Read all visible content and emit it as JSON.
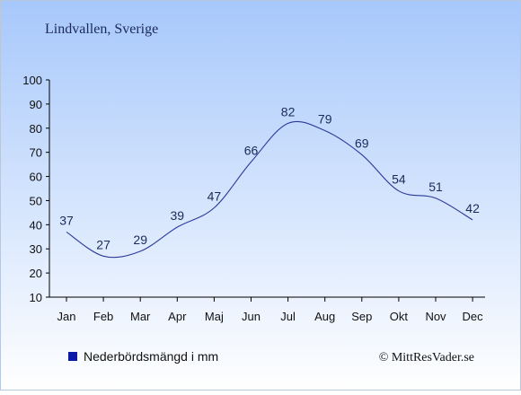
{
  "header": {
    "location": "Lindvallen, Sverige"
  },
  "legend": {
    "label": "Nederbördsmängd i mm",
    "swatch_color": "#0a1aa6"
  },
  "credit": {
    "text": "© MittResVader.se"
  },
  "colors": {
    "background_top": "#a7c8fb",
    "background_bottom": "#ffffff",
    "line": "#2a3a9a",
    "text": "#1a2a5a",
    "axis": "#000000"
  },
  "chart_data": {
    "type": "line",
    "title": "",
    "xlabel": "",
    "ylabel": "",
    "categories": [
      "Jan",
      "Feb",
      "Mar",
      "Apr",
      "Maj",
      "Jun",
      "Jul",
      "Aug",
      "Sep",
      "Okt",
      "Nov",
      "Dec"
    ],
    "series": [
      {
        "name": "Nederbördsmängd i mm",
        "values": [
          37,
          27,
          29,
          39,
          47,
          66,
          82,
          79,
          69,
          54,
          51,
          42
        ]
      }
    ],
    "ylim": [
      10,
      100
    ],
    "yticks": [
      10,
      20,
      30,
      40,
      50,
      60,
      70,
      80,
      90,
      100
    ],
    "grid": false,
    "legend_position": "bottom-left",
    "data_labels": true
  }
}
